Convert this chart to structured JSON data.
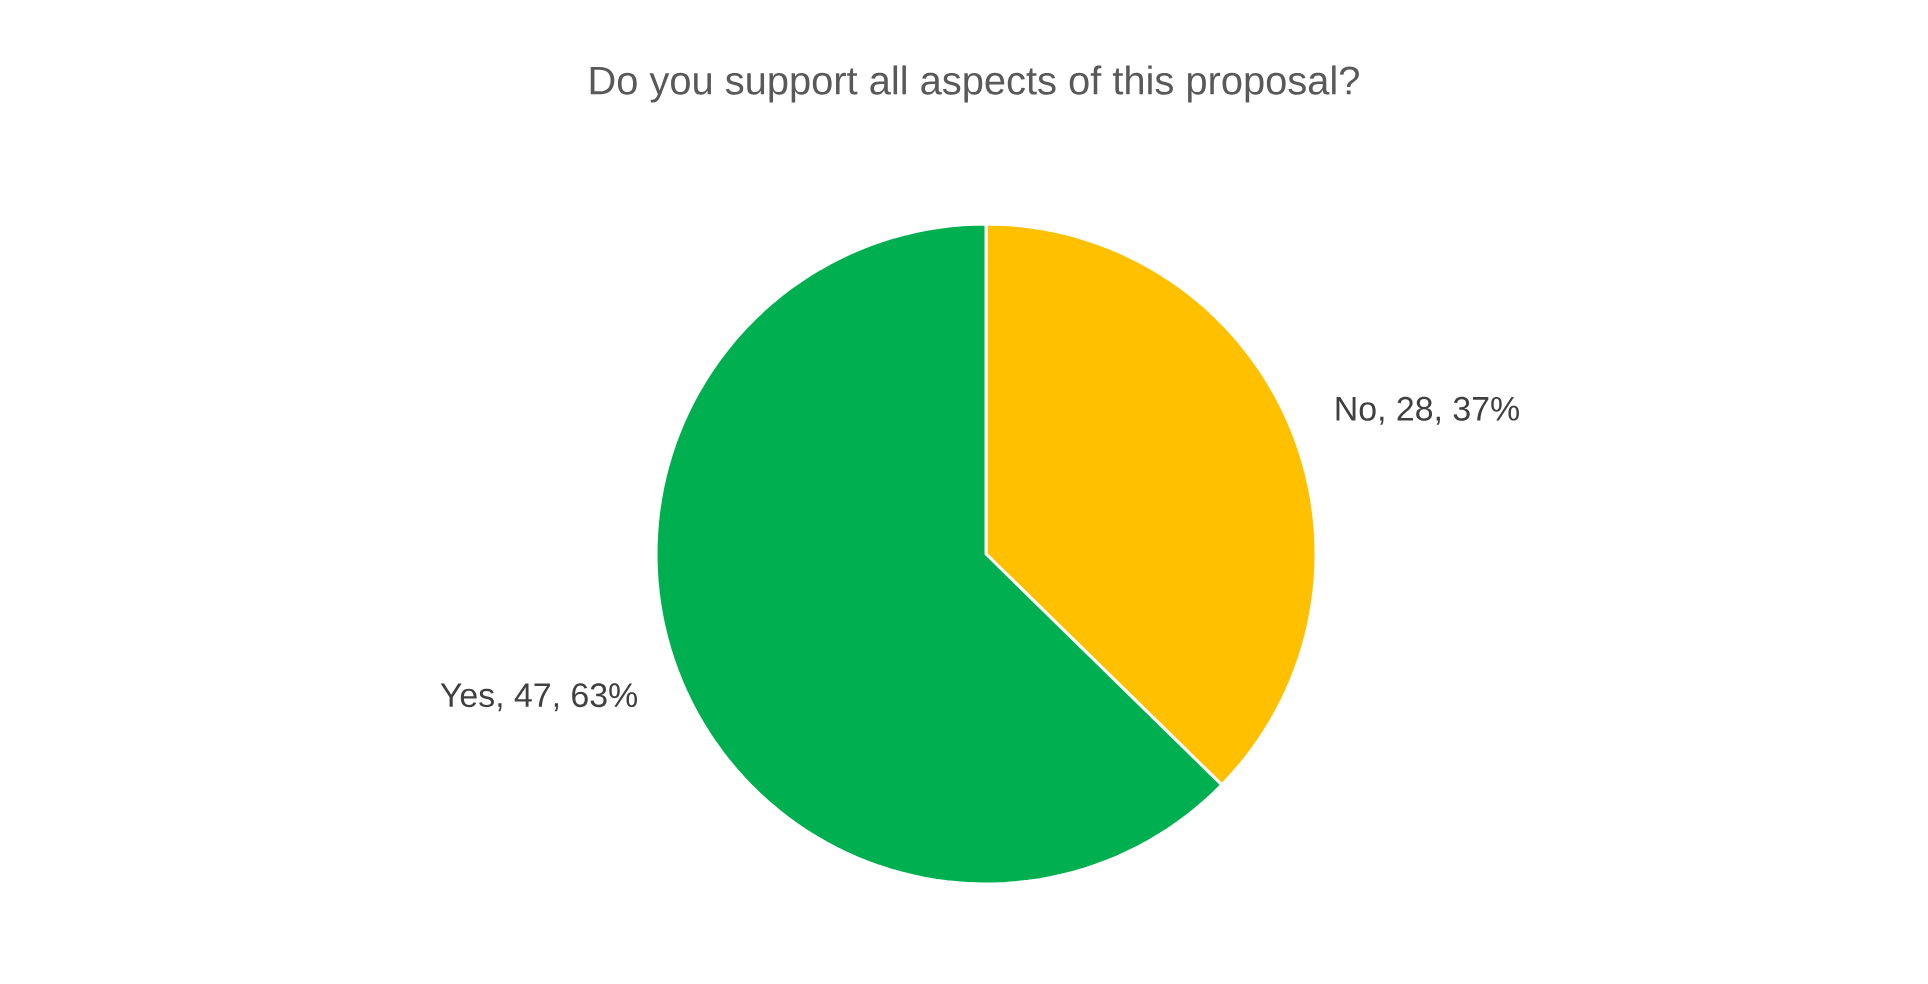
{
  "chart_data": {
    "type": "pie",
    "title": "Do you support all aspects of this proposal?",
    "values": [
      28,
      47
    ],
    "value_labels": [
      "No, 28, 37%",
      "Yes, 47, 63%"
    ],
    "colors": [
      "#ffc000",
      "#00b050"
    ]
  }
}
